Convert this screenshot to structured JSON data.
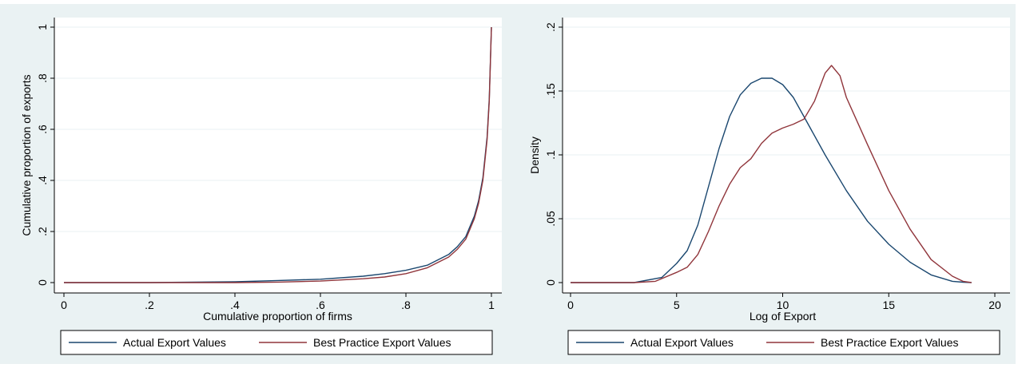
{
  "chart_data": [
    {
      "type": "line",
      "xlabel": "Cumulative proportion of firms",
      "ylabel": "Cumulative proportion of exports",
      "xlim": [
        0,
        1
      ],
      "ylim": [
        0,
        1
      ],
      "x_ticks": [
        0,
        0.2,
        0.4,
        0.6,
        0.8,
        1
      ],
      "x_tick_labels": [
        "0",
        ".2",
        ".4",
        ".6",
        ".8",
        "1"
      ],
      "y_ticks": [
        0,
        0.2,
        0.4,
        0.6,
        0.8,
        1
      ],
      "y_tick_labels": [
        "0",
        ".2",
        ".4",
        ".6",
        ".8",
        "1"
      ],
      "grid": true,
      "legend_position": "bottom",
      "series": [
        {
          "name": "Actual Export Values",
          "color": "#1a476f",
          "x": [
            0,
            0.2,
            0.4,
            0.5,
            0.6,
            0.7,
            0.75,
            0.8,
            0.85,
            0.9,
            0.92,
            0.94,
            0.96,
            0.97,
            0.98,
            0.99,
            0.995,
            1.0
          ],
          "y": [
            0,
            0,
            0.003,
            0.008,
            0.013,
            0.025,
            0.035,
            0.048,
            0.068,
            0.11,
            0.14,
            0.18,
            0.26,
            0.32,
            0.41,
            0.57,
            0.72,
            1.0
          ]
        },
        {
          "name": "Best Practice Export Values",
          "color": "#90353b",
          "x": [
            0,
            0.2,
            0.4,
            0.5,
            0.6,
            0.7,
            0.75,
            0.8,
            0.85,
            0.9,
            0.92,
            0.94,
            0.96,
            0.97,
            0.98,
            0.99,
            0.995,
            1.0
          ],
          "y": [
            0,
            0,
            0,
            0.002,
            0.006,
            0.015,
            0.022,
            0.035,
            0.058,
            0.1,
            0.13,
            0.17,
            0.25,
            0.31,
            0.4,
            0.56,
            0.71,
            1.0
          ]
        }
      ]
    },
    {
      "type": "line",
      "xlabel": "Log of Export",
      "ylabel": "Density",
      "xlim": [
        0,
        20
      ],
      "ylim": [
        0,
        0.2
      ],
      "x_ticks": [
        0,
        5,
        10,
        15,
        20
      ],
      "x_tick_labels": [
        "0",
        "5",
        "10",
        "15",
        "20"
      ],
      "y_ticks": [
        0,
        0.05,
        0.1,
        0.15,
        0.2
      ],
      "y_tick_labels": [
        "0",
        ".05",
        ".1",
        ".15",
        ".2"
      ],
      "grid": true,
      "legend_position": "bottom",
      "series": [
        {
          "name": "Actual Export Values",
          "color": "#1a476f",
          "x": [
            0,
            3,
            4.3,
            5,
            5.5,
            6,
            6.5,
            7,
            7.5,
            8,
            8.5,
            9,
            9.5,
            10,
            10.5,
            11,
            12,
            13,
            14,
            15,
            16,
            17,
            18,
            18.5,
            18.9
          ],
          "y": [
            0,
            0,
            0.004,
            0.015,
            0.025,
            0.045,
            0.075,
            0.105,
            0.13,
            0.147,
            0.156,
            0.16,
            0.16,
            0.155,
            0.145,
            0.13,
            0.1,
            0.072,
            0.048,
            0.03,
            0.016,
            0.006,
            0.001,
            0.0003,
            0
          ]
        },
        {
          "name": "Best Practice Export Values",
          "color": "#90353b",
          "x": [
            0,
            3,
            4,
            5,
            5.5,
            6,
            6.5,
            7,
            7.5,
            8,
            8.5,
            9,
            9.5,
            10,
            10.5,
            11,
            11.5,
            12,
            12.3,
            12.7,
            13,
            14,
            15,
            16,
            17,
            18,
            18.5,
            18.9
          ],
          "y": [
            0,
            0,
            0.001,
            0.008,
            0.012,
            0.022,
            0.04,
            0.06,
            0.077,
            0.09,
            0.097,
            0.109,
            0.117,
            0.121,
            0.124,
            0.128,
            0.142,
            0.164,
            0.17,
            0.162,
            0.145,
            0.108,
            0.072,
            0.042,
            0.018,
            0.005,
            0.001,
            0
          ]
        }
      ]
    }
  ]
}
